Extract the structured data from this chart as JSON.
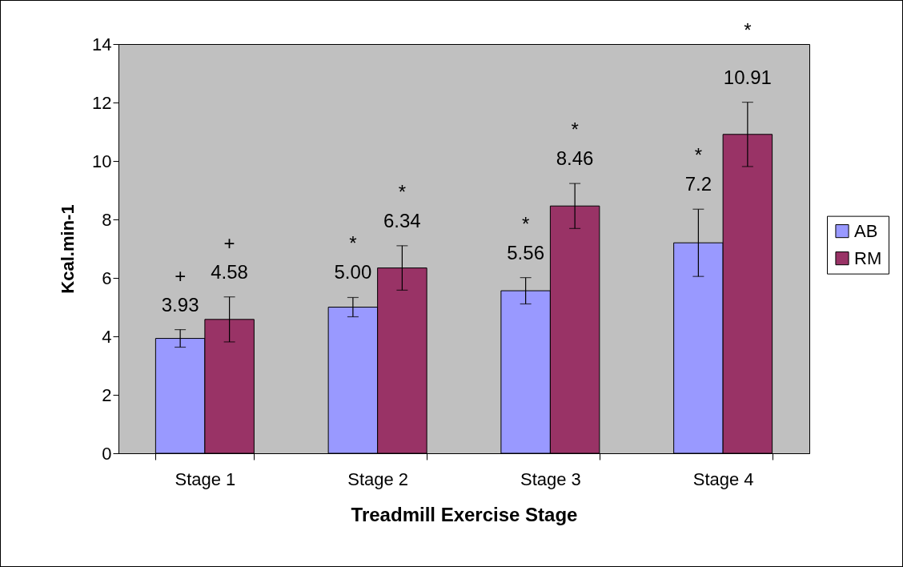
{
  "chart_data": {
    "type": "bar",
    "xlabel": "Treadmill Exercise Stage",
    "ylabel": "Kcal.min-1",
    "categories": [
      "Stage 1",
      "Stage 2",
      "Stage 3",
      "Stage 4"
    ],
    "series": [
      {
        "name": "AB",
        "color": "#9999ff",
        "values": [
          3.93,
          5.0,
          5.56,
          7.2
        ],
        "errors": [
          0.3,
          0.33,
          0.45,
          1.15
        ],
        "value_labels": [
          "3.93",
          "5.00",
          "5.56",
          "7.2"
        ]
      },
      {
        "name": "RM",
        "color": "#993366",
        "values": [
          4.58,
          6.34,
          8.46,
          10.91
        ],
        "errors": [
          0.77,
          0.76,
          0.77,
          1.1
        ],
        "value_labels": [
          "4.58",
          "6.34",
          "8.46",
          "10.91"
        ]
      }
    ],
    "ylim": [
      0,
      14
    ],
    "yticks": [
      0,
      2,
      4,
      6,
      8,
      10,
      12,
      14
    ],
    "grid": false,
    "legend": "right",
    "annotations": [
      "+",
      "+",
      "*",
      "*",
      "*",
      "*",
      "*",
      "*"
    ]
  }
}
